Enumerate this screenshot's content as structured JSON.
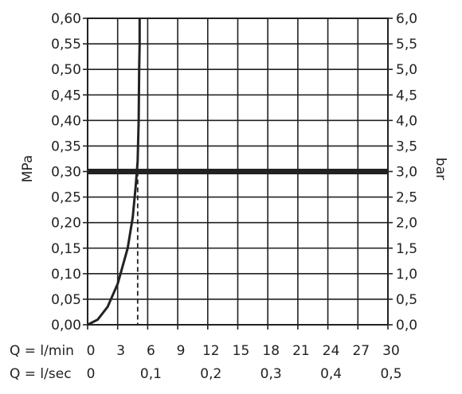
{
  "chart_data": {
    "type": "line",
    "left_axis": {
      "label": "MPa",
      "ticks": [
        "0,00",
        "0,05",
        "0,10",
        "0,15",
        "0,20",
        "0,25",
        "0,30",
        "0,35",
        "0,40",
        "0,45",
        "0,50",
        "0,55",
        "0,60"
      ],
      "range": [
        0,
        0.6
      ]
    },
    "right_axis": {
      "label": "bar",
      "ticks": [
        "0,0",
        "0,5",
        "1,0",
        "1,5",
        "2,0",
        "2,5",
        "3,0",
        "3,5",
        "4,0",
        "4,5",
        "5,0",
        "5,5",
        "6,0"
      ],
      "range": [
        0,
        6
      ]
    },
    "x_axis_lmin": {
      "label": "Q = l/min",
      "ticks": [
        "0",
        "3",
        "6",
        "9",
        "12",
        "15",
        "18",
        "21",
        "24",
        "27",
        "30"
      ],
      "range": [
        0,
        30
      ]
    },
    "x_axis_lsec": {
      "label": "Q = l/sec",
      "ticks": [
        "0",
        "0,1",
        "0,2",
        "0,3",
        "0,4",
        "0,5"
      ],
      "range": [
        0,
        0.5
      ]
    },
    "grid": true,
    "series": [
      {
        "x": [
          0,
          1,
          2,
          3,
          4,
          4.5,
          4.8,
          5.0,
          5.1,
          5.15,
          5.2,
          5.2
        ],
        "y": [
          0,
          0.01,
          0.035,
          0.08,
          0.15,
          0.21,
          0.27,
          0.32,
          0.4,
          0.5,
          0.55,
          0.6
        ]
      }
    ],
    "reference_line_y": 0.3,
    "operating_point_x": 5
  }
}
